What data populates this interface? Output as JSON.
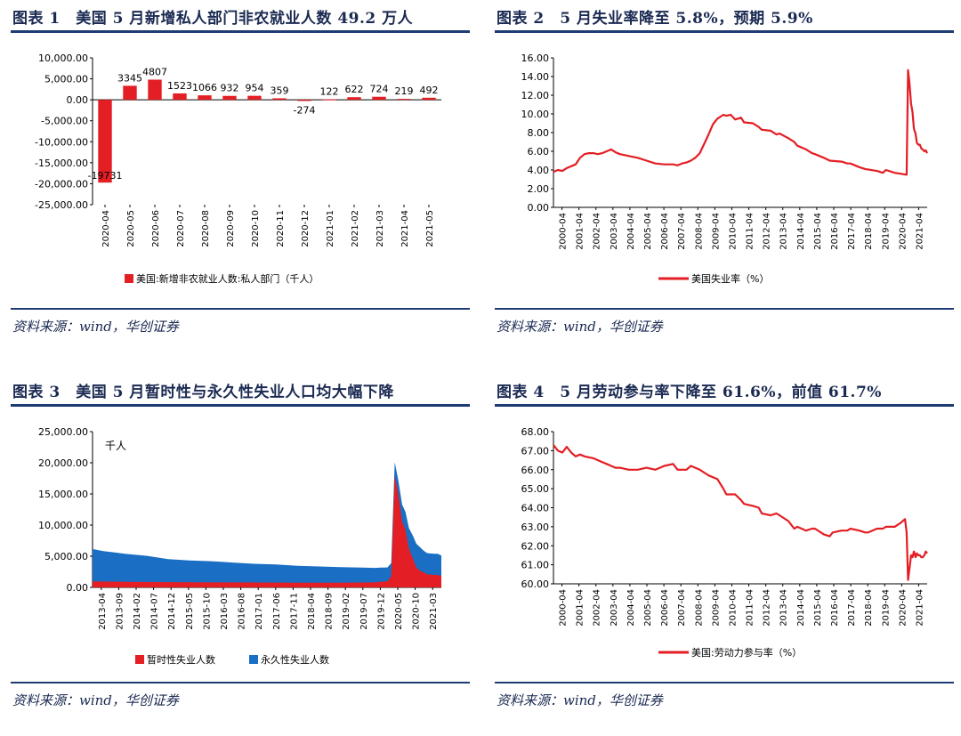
{
  "panels": [
    {
      "title": "图表 1　美国 5 月新增私人部门非农就业人数 49.2 万人",
      "source": "资料来源：wind，华创证券",
      "chart_data": {
        "type": "bar",
        "title": "",
        "categories": [
          "2020-04",
          "2020-05",
          "2020-06",
          "2020-07",
          "2020-08",
          "2020-09",
          "2020-10",
          "2020-11",
          "2020-12",
          "2021-01",
          "2021-02",
          "2021-03",
          "2021-04",
          "2021-05"
        ],
        "values": [
          -19731,
          3345,
          4807,
          1523,
          1066,
          932,
          954,
          359,
          -274,
          122,
          622,
          724,
          219,
          492
        ],
        "data_labels": [
          "-19731",
          "3345",
          "4807",
          "1523",
          "1066",
          "932",
          "954",
          "359",
          "-274",
          "122",
          "622",
          "724",
          "219",
          "492"
        ],
        "series_name": "美国:新增非农就业人数:私人部门（千人）",
        "color": "#e31e24",
        "ylim": [
          -25000,
          10000
        ],
        "yticks": [
          10000,
          5000,
          0,
          -5000,
          -10000,
          -15000,
          -20000,
          -25000
        ],
        "ytick_labels": [
          "10,000.00",
          "5,000.00",
          "0.00",
          "-5,000.00",
          "-10,000.00",
          "-15,000.00",
          "-20,000.00",
          "-25,000.00"
        ],
        "legend": "bottom"
      }
    },
    {
      "title": "图表 2　5 月失业率降至 5.8%，预期 5.9%",
      "source": "资料来源：wind，华创证券",
      "chart_data": {
        "type": "line",
        "title": "",
        "series_name": "美国失业率（%）",
        "color": "#e31e24",
        "x_start": 2000.25,
        "x_end": 2021.33,
        "points": [
          [
            2000.25,
            3.8
          ],
          [
            2000.5,
            4.0
          ],
          [
            2000.75,
            3.9
          ],
          [
            2001.0,
            4.2
          ],
          [
            2001.25,
            4.4
          ],
          [
            2001.5,
            4.6
          ],
          [
            2001.75,
            5.3
          ],
          [
            2002.0,
            5.7
          ],
          [
            2002.25,
            5.8
          ],
          [
            2002.5,
            5.8
          ],
          [
            2002.75,
            5.7
          ],
          [
            2003.0,
            5.8
          ],
          [
            2003.25,
            6.0
          ],
          [
            2003.5,
            6.2
          ],
          [
            2003.75,
            5.9
          ],
          [
            2004.0,
            5.7
          ],
          [
            2004.25,
            5.6
          ],
          [
            2004.5,
            5.5
          ],
          [
            2004.75,
            5.4
          ],
          [
            2005.0,
            5.3
          ],
          [
            2005.5,
            5.0
          ],
          [
            2006.0,
            4.7
          ],
          [
            2006.5,
            4.6
          ],
          [
            2007.0,
            4.6
          ],
          [
            2007.25,
            4.5
          ],
          [
            2007.5,
            4.7
          ],
          [
            2007.75,
            4.8
          ],
          [
            2008.0,
            5.0
          ],
          [
            2008.25,
            5.3
          ],
          [
            2008.5,
            5.8
          ],
          [
            2008.75,
            6.8
          ],
          [
            2009.0,
            7.8
          ],
          [
            2009.25,
            8.9
          ],
          [
            2009.5,
            9.5
          ],
          [
            2009.83,
            9.9
          ],
          [
            2010.0,
            9.8
          ],
          [
            2010.25,
            9.9
          ],
          [
            2010.5,
            9.4
          ],
          [
            2010.83,
            9.6
          ],
          [
            2011.0,
            9.1
          ],
          [
            2011.5,
            9.0
          ],
          [
            2011.83,
            8.6
          ],
          [
            2012.0,
            8.3
          ],
          [
            2012.5,
            8.2
          ],
          [
            2012.83,
            7.8
          ],
          [
            2013.0,
            7.9
          ],
          [
            2013.5,
            7.4
          ],
          [
            2013.83,
            7.0
          ],
          [
            2014.0,
            6.6
          ],
          [
            2014.5,
            6.2
          ],
          [
            2014.83,
            5.8
          ],
          [
            2015.0,
            5.7
          ],
          [
            2015.5,
            5.3
          ],
          [
            2015.83,
            5.0
          ],
          [
            2016.5,
            4.9
          ],
          [
            2016.83,
            4.7
          ],
          [
            2017.0,
            4.7
          ],
          [
            2017.5,
            4.3
          ],
          [
            2017.83,
            4.1
          ],
          [
            2018.5,
            3.9
          ],
          [
            2018.83,
            3.7
          ],
          [
            2019.0,
            4.0
          ],
          [
            2019.5,
            3.7
          ],
          [
            2019.83,
            3.6
          ],
          [
            2020.17,
            3.5
          ],
          [
            2020.25,
            14.7
          ],
          [
            2020.33,
            13.3
          ],
          [
            2020.42,
            11.1
          ],
          [
            2020.5,
            10.2
          ],
          [
            2020.58,
            8.4
          ],
          [
            2020.67,
            7.9
          ],
          [
            2020.75,
            6.9
          ],
          [
            2020.83,
            6.7
          ],
          [
            2020.92,
            6.7
          ],
          [
            2021.0,
            6.3
          ],
          [
            2021.08,
            6.2
          ],
          [
            2021.17,
            6.0
          ],
          [
            2021.25,
            6.1
          ],
          [
            2021.33,
            5.8
          ]
        ],
        "ylim": [
          0,
          16
        ],
        "yticks": [
          0,
          2,
          4,
          6,
          8,
          10,
          12,
          14,
          16
        ],
        "ytick_labels": [
          "0.00",
          "2.00",
          "4.00",
          "6.00",
          "8.00",
          "10.00",
          "12.00",
          "14.00",
          "16.00"
        ],
        "xtick_labels": [
          "2000-04",
          "2001-04",
          "2002-04",
          "2003-04",
          "2004-04",
          "2005-04",
          "2006-04",
          "2007-04",
          "2008-04",
          "2009-04",
          "2010-04",
          "2011-04",
          "2012-04",
          "2013-04",
          "2014-04",
          "2015-04",
          "2016-04",
          "2017-04",
          "2018-04",
          "2019-04",
          "2020-04",
          "2021-04"
        ],
        "legend": "bottom"
      }
    },
    {
      "title": "图表 3　美国 5 月暂时性与永久性失业人口均大幅下降",
      "source": "资料来源：wind，华创证券",
      "chart_data": {
        "type": "area",
        "title": "",
        "unit_label": "千人",
        "x_start": 2013.25,
        "x_end": 2021.33,
        "series": [
          {
            "name": "暂时性失业人数",
            "color": "#e31e24",
            "points": [
              [
                2013.25,
                950
              ],
              [
                2014.0,
                900
              ],
              [
                2015.0,
                850
              ],
              [
                2016.0,
                800
              ],
              [
                2017.0,
                780
              ],
              [
                2018.0,
                760
              ],
              [
                2019.0,
                750
              ],
              [
                2019.8,
                800
              ],
              [
                2020.08,
                1000
              ],
              [
                2020.17,
                1800
              ],
              [
                2020.25,
                18000
              ],
              [
                2020.33,
                15000
              ],
              [
                2020.42,
                10600
              ],
              [
                2020.5,
                9200
              ],
              [
                2020.58,
                6200
              ],
              [
                2020.67,
                4600
              ],
              [
                2020.75,
                3200
              ],
              [
                2020.83,
                2700
              ],
              [
                2020.92,
                2400
              ],
              [
                2021.0,
                2100
              ],
              [
                2021.17,
                2000
              ],
              [
                2021.25,
                2000
              ],
              [
                2021.33,
                1800
              ]
            ]
          },
          {
            "name": "永久性失业人数",
            "color": "#1a6fc4",
            "points": [
              [
                2013.25,
                5200
              ],
              [
                2013.5,
                4900
              ],
              [
                2014.0,
                4500
              ],
              [
                2014.5,
                4200
              ],
              [
                2015.0,
                3700
              ],
              [
                2015.5,
                3500
              ],
              [
                2016.0,
                3400
              ],
              [
                2016.5,
                3200
              ],
              [
                2017.0,
                3000
              ],
              [
                2017.5,
                2900
              ],
              [
                2018.0,
                2700
              ],
              [
                2018.5,
                2600
              ],
              [
                2019.0,
                2500
              ],
              [
                2019.5,
                2400
              ],
              [
                2019.92,
                2300
              ],
              [
                2020.08,
                2200
              ],
              [
                2020.17,
                2100
              ],
              [
                2020.25,
                2100
              ],
              [
                2020.33,
                2300
              ],
              [
                2020.42,
                2700
              ],
              [
                2020.5,
                2900
              ],
              [
                2020.58,
                3300
              ],
              [
                2020.67,
                3700
              ],
              [
                2020.75,
                3800
              ],
              [
                2020.83,
                3800
              ],
              [
                2020.92,
                3500
              ],
              [
                2021.0,
                3400
              ],
              [
                2021.17,
                3400
              ],
              [
                2021.25,
                3400
              ],
              [
                2021.33,
                3300
              ]
            ]
          }
        ],
        "ylim": [
          0,
          25000
        ],
        "yticks": [
          0,
          5000,
          10000,
          15000,
          20000,
          25000
        ],
        "ytick_labels": [
          "0.00",
          "5,000.00",
          "10,000.00",
          "15,000.00",
          "20,000.00",
          "25,000.00"
        ],
        "xtick_labels": [
          "2013-04",
          "2013-09",
          "2014-02",
          "2014-07",
          "2014-12",
          "2015-05",
          "2015-10",
          "2016-03",
          "2016-08",
          "2017-01",
          "2017-06",
          "2017-11",
          "2018-04",
          "2018-09",
          "2019-02",
          "2019-07",
          "2019-12",
          "2020-05",
          "2020-10",
          "2021-03"
        ],
        "legend": "bottom"
      }
    },
    {
      "title": "图表 4　5 月劳动参与率下降至 61.6%，前值 61.7%",
      "source": "资料来源：wind，华创证券",
      "chart_data": {
        "type": "line",
        "title": "",
        "series_name": "美国:劳动力参与率（%）",
        "color": "#e31e24",
        "x_start": 2000.25,
        "x_end": 2021.33,
        "points": [
          [
            2000.25,
            67.3
          ],
          [
            2000.5,
            67.0
          ],
          [
            2000.75,
            66.9
          ],
          [
            2001.0,
            67.2
          ],
          [
            2001.25,
            66.9
          ],
          [
            2001.5,
            66.7
          ],
          [
            2001.75,
            66.8
          ],
          [
            2002.0,
            66.7
          ],
          [
            2002.5,
            66.6
          ],
          [
            2003.0,
            66.4
          ],
          [
            2003.25,
            66.3
          ],
          [
            2003.5,
            66.2
          ],
          [
            2003.75,
            66.1
          ],
          [
            2004.0,
            66.1
          ],
          [
            2004.5,
            66.0
          ],
          [
            2005.0,
            66.0
          ],
          [
            2005.5,
            66.1
          ],
          [
            2006.0,
            66.0
          ],
          [
            2006.5,
            66.2
          ],
          [
            2007.0,
            66.3
          ],
          [
            2007.25,
            66.0
          ],
          [
            2007.5,
            66.0
          ],
          [
            2007.75,
            66.0
          ],
          [
            2008.0,
            66.2
          ],
          [
            2008.5,
            66.0
          ],
          [
            2008.83,
            65.8
          ],
          [
            2009.0,
            65.7
          ],
          [
            2009.5,
            65.5
          ],
          [
            2009.83,
            65.0
          ],
          [
            2010.0,
            64.7
          ],
          [
            2010.5,
            64.7
          ],
          [
            2010.83,
            64.4
          ],
          [
            2011.0,
            64.2
          ],
          [
            2011.5,
            64.1
          ],
          [
            2011.83,
            64.0
          ],
          [
            2012.0,
            63.7
          ],
          [
            2012.5,
            63.6
          ],
          [
            2012.83,
            63.7
          ],
          [
            2013.0,
            63.6
          ],
          [
            2013.5,
            63.3
          ],
          [
            2013.83,
            62.9
          ],
          [
            2014.0,
            63.0
          ],
          [
            2014.5,
            62.8
          ],
          [
            2014.83,
            62.9
          ],
          [
            2015.0,
            62.9
          ],
          [
            2015.5,
            62.6
          ],
          [
            2015.83,
            62.5
          ],
          [
            2016.0,
            62.7
          ],
          [
            2016.5,
            62.8
          ],
          [
            2016.83,
            62.8
          ],
          [
            2017.0,
            62.9
          ],
          [
            2017.5,
            62.8
          ],
          [
            2017.83,
            62.7
          ],
          [
            2018.0,
            62.7
          ],
          [
            2018.5,
            62.9
          ],
          [
            2018.83,
            62.9
          ],
          [
            2019.0,
            63.0
          ],
          [
            2019.5,
            63.0
          ],
          [
            2019.83,
            63.2
          ],
          [
            2020.08,
            63.4
          ],
          [
            2020.17,
            62.7
          ],
          [
            2020.25,
            60.2
          ],
          [
            2020.33,
            60.8
          ],
          [
            2020.42,
            61.5
          ],
          [
            2020.5,
            61.4
          ],
          [
            2020.58,
            61.7
          ],
          [
            2020.67,
            61.4
          ],
          [
            2020.75,
            61.6
          ],
          [
            2020.83,
            61.5
          ],
          [
            2020.92,
            61.5
          ],
          [
            2021.0,
            61.4
          ],
          [
            2021.08,
            61.4
          ],
          [
            2021.17,
            61.5
          ],
          [
            2021.25,
            61.7
          ],
          [
            2021.33,
            61.6
          ]
        ],
        "ylim": [
          60,
          68
        ],
        "yticks": [
          60,
          61,
          62,
          63,
          64,
          65,
          66,
          67,
          68
        ],
        "ytick_labels": [
          "60.00",
          "61.00",
          "62.00",
          "63.00",
          "64.00",
          "65.00",
          "66.00",
          "67.00",
          "68.00"
        ],
        "xtick_labels": [
          "2000-04",
          "2001-04",
          "2002-04",
          "2003-04",
          "2004-04",
          "2005-04",
          "2006-04",
          "2007-04",
          "2008-04",
          "2009-04",
          "2010-04",
          "2011-04",
          "2012-04",
          "2013-04",
          "2014-04",
          "2015-04",
          "2016-04",
          "2017-04",
          "2018-04",
          "2019-04",
          "2020-04",
          "2021-04"
        ],
        "legend": "bottom"
      }
    }
  ]
}
